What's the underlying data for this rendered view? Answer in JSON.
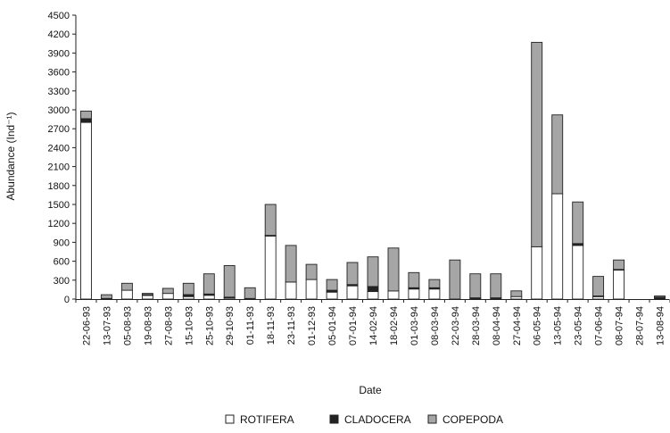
{
  "chart_data": {
    "type": "bar",
    "stacked": true,
    "title": "",
    "xlabel": "Date",
    "ylabel": "Abundance (Ind⁻¹)",
    "ylim": [
      0,
      4500
    ],
    "yticks": [
      0,
      300,
      600,
      900,
      1200,
      1500,
      1800,
      2100,
      2400,
      2700,
      3000,
      3300,
      3600,
      3900,
      4200,
      4500
    ],
    "grid": false,
    "legend_position": "bottom",
    "categories": [
      "22-06-93",
      "13-07-93",
      "05-08-93",
      "19-08-93",
      "27-08-93",
      "15-10-93",
      "25-10-93",
      "29-10-93",
      "01-11-93",
      "18-11-93",
      "23-11-93",
      "01-12-93",
      "05-01-94",
      "07-01-94",
      "14-02-94",
      "18-02-94",
      "01-03-94",
      "08-03-94",
      "22-03-94",
      "28-03-94",
      "08-04-94",
      "27-04-94",
      "06-05-94",
      "13-05-94",
      "23-05-94",
      "07-06-94",
      "08-07-94",
      "28-07-94",
      "13-08-94"
    ],
    "series": [
      {
        "name": "ROTIFERA",
        "color": "#ffffff",
        "values": [
          2800,
          10,
          140,
          60,
          90,
          40,
          60,
          20,
          10,
          1000,
          270,
          310,
          110,
          210,
          120,
          130,
          160,
          160,
          0,
          10,
          10,
          40,
          830,
          1670,
          850,
          40,
          460,
          0,
          0
        ]
      },
      {
        "name": "CLADOCERA",
        "color": "#222222",
        "values": [
          60,
          0,
          0,
          10,
          0,
          30,
          20,
          10,
          0,
          10,
          0,
          0,
          30,
          20,
          80,
          0,
          20,
          20,
          0,
          10,
          10,
          0,
          0,
          0,
          30,
          10,
          10,
          0,
          30
        ]
      },
      {
        "name": "COPEPODA",
        "color": "#a6a6a6",
        "values": [
          120,
          60,
          110,
          20,
          80,
          180,
          320,
          500,
          170,
          490,
          580,
          240,
          170,
          350,
          470,
          680,
          240,
          130,
          620,
          380,
          380,
          90,
          3240,
          1250,
          660,
          310,
          150,
          0,
          20
        ]
      }
    ]
  }
}
